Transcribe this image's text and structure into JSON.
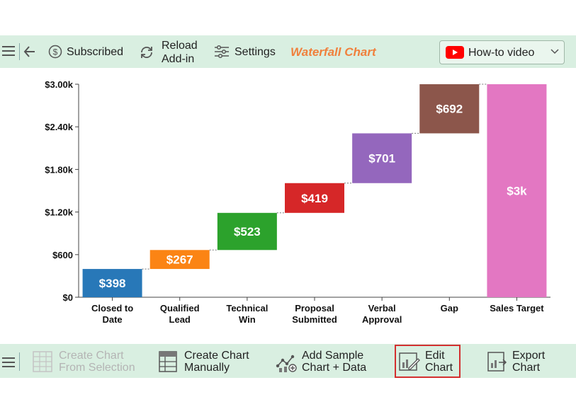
{
  "toolbar": {
    "subscribed_label": "Subscribed",
    "reload_label_line1": "Reload",
    "reload_label_line2": "Add-in",
    "settings_label": "Settings",
    "brand": "Waterfall Chart",
    "video_label": "How-to video"
  },
  "bottombar": {
    "create_from_selection_line1": "Create Chart",
    "create_from_selection_line2": "From Selection",
    "create_manually_line1": "Create Chart",
    "create_manually_line2": "Manually",
    "add_sample_line1": "Add Sample",
    "add_sample_line2": "Chart + Data",
    "edit_line1": "Edit",
    "edit_line2": "Chart",
    "export_line1": "Export",
    "export_line2": "Chart"
  },
  "colors": {
    "toolbar_bg": "#d9efe1",
    "brand": "#f0803c",
    "highlight": "#d32f2f"
  },
  "chart_data": {
    "type": "waterfall",
    "categories": [
      [
        "Closed to",
        "Date"
      ],
      [
        "Qualified",
        "Lead"
      ],
      [
        "Technical",
        "Win"
      ],
      [
        "Proposal",
        "Submitted"
      ],
      [
        "Verbal",
        "Approval"
      ],
      [
        "Gap"
      ],
      [
        "Sales Target"
      ]
    ],
    "values": [
      398,
      267,
      523,
      419,
      701,
      692,
      3000
    ],
    "is_total": [
      false,
      false,
      false,
      false,
      false,
      false,
      true
    ],
    "labels": [
      "$398",
      "$267",
      "$523",
      "$419",
      "$701",
      "$692",
      "$3k"
    ],
    "colors": [
      "#2878b8",
      "#fb8414",
      "#2ca22c",
      "#d62728",
      "#9467bd",
      "#8c564b",
      "#e377c2"
    ],
    "y_ticks": [
      0,
      600,
      1200,
      1800,
      2400,
      3000
    ],
    "y_tick_labels": [
      "$0",
      "$600",
      "$1.20k",
      "$1.80k",
      "$2.40k",
      "$3.00k"
    ],
    "ylim": [
      0,
      3000
    ],
    "grid": false,
    "legend": "none"
  }
}
